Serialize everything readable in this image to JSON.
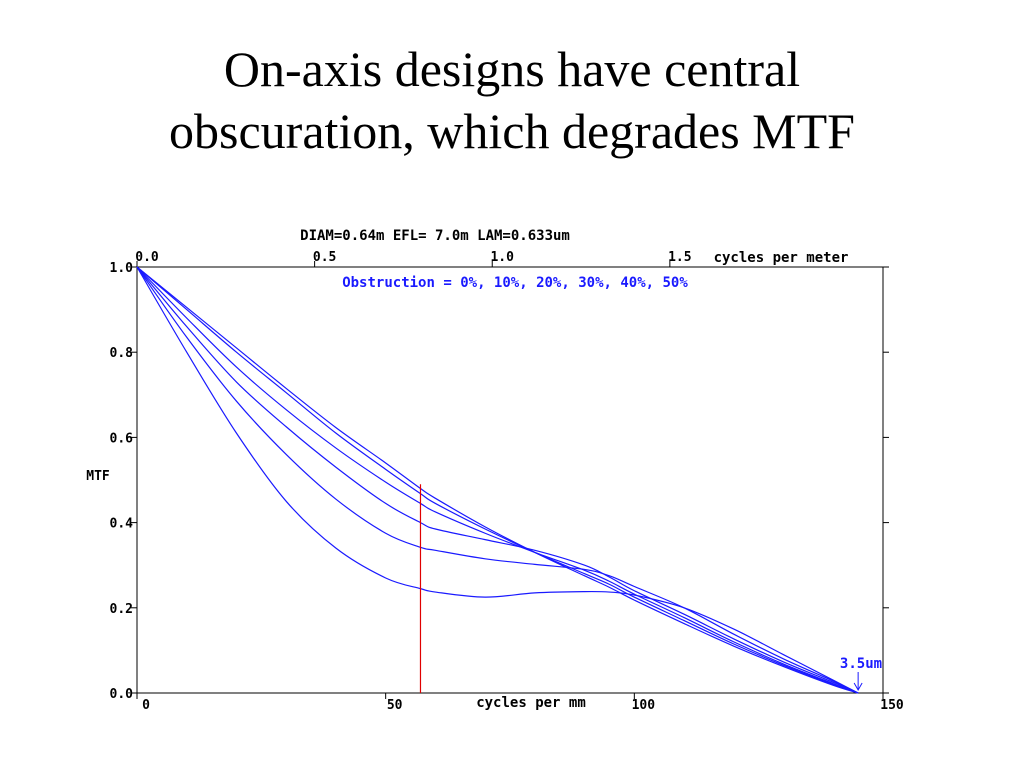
{
  "slide": {
    "title_line1": "On-axis designs have central",
    "title_line2": "obscuration, which degrades MTF"
  },
  "chart_data": {
    "type": "line",
    "header": "DIAM=0.64m   EFL= 7.0m   LAM=0.633um",
    "xlabel": "cycles per mm",
    "ylabel": "MTF",
    "xlim": [
      0,
      150
    ],
    "ylim": [
      0,
      1.0
    ],
    "x_ticks": [
      "0",
      "50",
      "100",
      "150"
    ],
    "y_ticks": [
      "0.0",
      "0.2",
      "0.4",
      "0.6",
      "0.8",
      "1.0"
    ],
    "top_axis": {
      "label": "cycles per meter",
      "ticks": [
        "0.0",
        "0.5",
        "1.0",
        "1.5"
      ],
      "lim": [
        0,
        2.1
      ]
    },
    "annotation": "Obstruction = 0%, 10%, 20%, 30%, 40%, 50%",
    "marker_label": "3.5um",
    "marker_x": 145,
    "reference_line_x": 57,
    "colors": {
      "curve": "#1a1aff",
      "reference": "#e00000",
      "axis": "#000000"
    },
    "grid": false,
    "series": [
      {
        "x": [
          0,
          10,
          20,
          30,
          40,
          50,
          57,
          60,
          70,
          80,
          90,
          95,
          100,
          110,
          120,
          130,
          140,
          145
        ],
        "values": [
          1.0,
          0.905,
          0.81,
          0.715,
          0.623,
          0.54,
          0.48,
          0.457,
          0.39,
          0.33,
          0.275,
          0.248,
          0.218,
          0.163,
          0.11,
          0.062,
          0.018,
          0.0
        ]
      },
      {
        "x": [
          0,
          10,
          20,
          30,
          40,
          50,
          57,
          60,
          70,
          80,
          90,
          95,
          100,
          110,
          120,
          130,
          140,
          145
        ],
        "values": [
          1.0,
          0.9,
          0.8,
          0.705,
          0.61,
          0.525,
          0.468,
          0.445,
          0.385,
          0.33,
          0.28,
          0.255,
          0.225,
          0.17,
          0.115,
          0.065,
          0.02,
          0.0
        ]
      },
      {
        "x": [
          0,
          10,
          20,
          30,
          40,
          50,
          57,
          60,
          70,
          80,
          90,
          95,
          100,
          110,
          120,
          130,
          140,
          145
        ],
        "values": [
          1.0,
          0.88,
          0.765,
          0.665,
          0.575,
          0.495,
          0.445,
          0.425,
          0.375,
          0.33,
          0.288,
          0.262,
          0.232,
          0.177,
          0.12,
          0.068,
          0.022,
          0.0
        ]
      },
      {
        "x": [
          0,
          10,
          20,
          30,
          40,
          50,
          57,
          60,
          70,
          80,
          90,
          95,
          100,
          110,
          120,
          130,
          140,
          145
        ],
        "values": [
          1.0,
          0.86,
          0.73,
          0.625,
          0.53,
          0.445,
          0.4,
          0.385,
          0.36,
          0.335,
          0.3,
          0.272,
          0.24,
          0.185,
          0.127,
          0.073,
          0.025,
          0.0
        ]
      },
      {
        "x": [
          0,
          10,
          20,
          30,
          40,
          50,
          57,
          60,
          70,
          80,
          90,
          95,
          100,
          110,
          120,
          130,
          140,
          145
        ],
        "values": [
          1.0,
          0.835,
          0.685,
          0.56,
          0.455,
          0.375,
          0.342,
          0.335,
          0.315,
          0.302,
          0.29,
          0.275,
          0.25,
          0.2,
          0.138,
          0.08,
          0.028,
          0.0
        ]
      },
      {
        "x": [
          0,
          10,
          20,
          30,
          40,
          50,
          57,
          60,
          70,
          80,
          90,
          95,
          100,
          110,
          120,
          130,
          140,
          145
        ],
        "values": [
          1.0,
          0.8,
          0.61,
          0.45,
          0.34,
          0.27,
          0.245,
          0.237,
          0.225,
          0.235,
          0.238,
          0.237,
          0.23,
          0.2,
          0.15,
          0.09,
          0.03,
          0.0
        ]
      }
    ]
  }
}
